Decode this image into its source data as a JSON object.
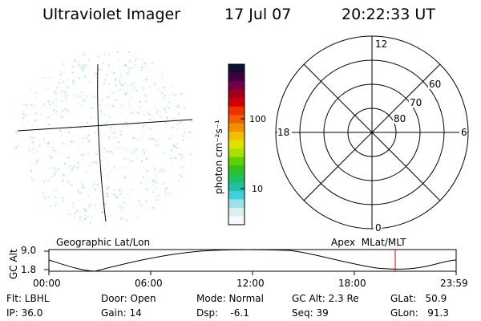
{
  "header": {
    "title": "Ultraviolet Imager",
    "date": "17 Jul 07",
    "time": "20:22:33 UT"
  },
  "colorbar": {
    "unit_label": "photon cm⁻²s⁻¹",
    "ticks": [
      "100",
      "10"
    ],
    "colors": [
      "#101030",
      "#400040",
      "#70004a",
      "#a00020",
      "#d00000",
      "#f03000",
      "#f06000",
      "#f09000",
      "#f0c000",
      "#e0e000",
      "#a8e000",
      "#60d000",
      "#30c020",
      "#20c060",
      "#20c0a0",
      "#40d0d8",
      "#a0e0e8",
      "#d8f0f0",
      "#f4fafc"
    ]
  },
  "polar_plot": {
    "mlt_labels": [
      "12",
      "18",
      "6",
      "0"
    ],
    "lat_labels": [
      "60",
      "70",
      "80"
    ]
  },
  "altitude_strip": {
    "left_label": "Geographic Lat/Lon",
    "right_label": "Apex  MLat/MLT",
    "axis_title": "GC Alt",
    "y_ticks": [
      "9.0",
      "1.8"
    ],
    "x_ticks": [
      "00:00",
      "06:00",
      "12:00",
      "18:00",
      "23:59"
    ],
    "marker_color": "#d00000"
  },
  "info": {
    "flt": "Flt: LBHL",
    "ip": "IP: 36.0",
    "door": "Door: Open",
    "gain": "Gain: 14",
    "mode": "Mode: Normal",
    "dsp": "Dsp:    -6.1",
    "gc_alt": "GC Alt: 2.3 Re",
    "seq": "Seq: 39",
    "glat": "GLat:   50.9",
    "glon": "GLon:   91.3"
  }
}
